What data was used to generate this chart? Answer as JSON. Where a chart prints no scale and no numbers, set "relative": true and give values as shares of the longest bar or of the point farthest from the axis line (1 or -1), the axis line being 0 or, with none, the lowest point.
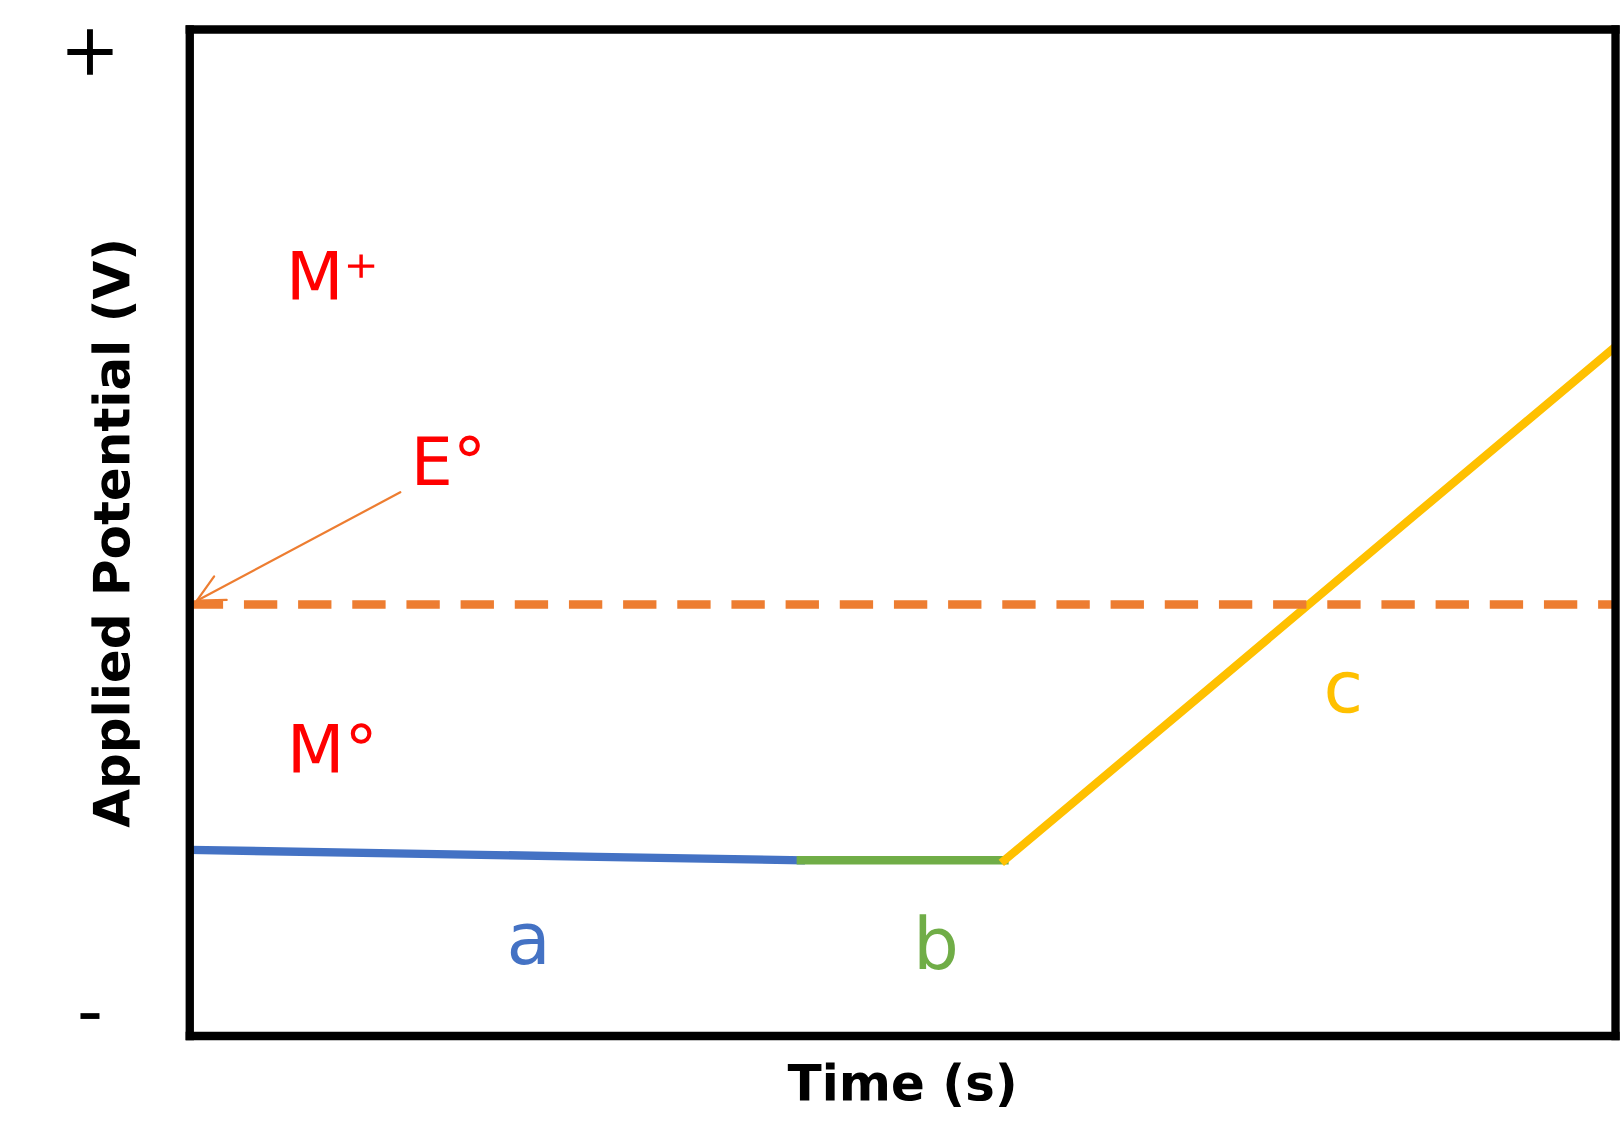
{
  "chart_data": {
    "type": "line",
    "relative": true,
    "xlabel": "Time (s)",
    "ylabel": "Applied Potential (V)",
    "categories": [
      null,
      null,
      null,
      null,
      null,
      null,
      null,
      null
    ],
    "series": [
      {
        "name": "a",
        "color": "#4472c4",
        "values": [
          0.27,
          0.265,
          0.26,
          0.255,
          null,
          null,
          null,
          null
        ]
      },
      {
        "name": "b",
        "color": "#70ad47",
        "values": [
          null,
          null,
          null,
          0.255,
          0.255,
          null,
          null,
          null
        ]
      },
      {
        "name": "c",
        "color": "#ffc000",
        "values": [
          null,
          null,
          null,
          null,
          0.255,
          0.503,
          0.752,
          1.0
        ]
      }
    ],
    "ref_lines": [
      {
        "axis": "y",
        "value": 0.626,
        "label": "E°",
        "color": "#ed7d31",
        "line_style": "dashed"
      }
    ],
    "annotations": [
      "+",
      "-",
      "M⁺",
      "M°"
    ]
  }
}
